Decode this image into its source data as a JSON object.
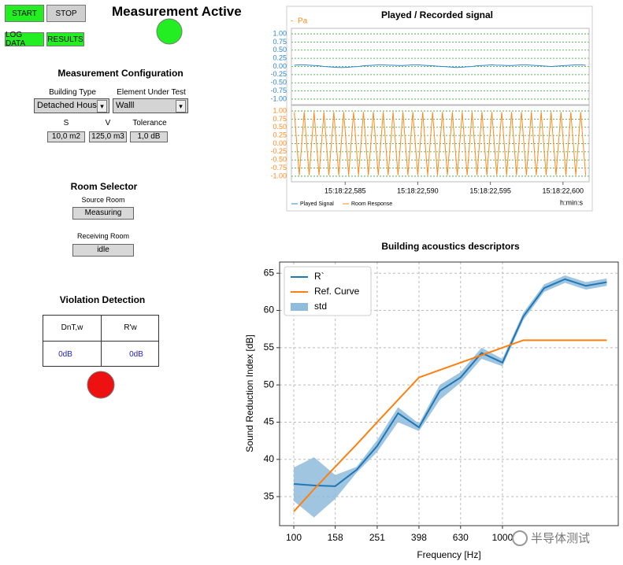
{
  "ui": {
    "buttons": {
      "start": "START",
      "stop": "STOP",
      "log_data": "LOG DATA",
      "results": "RESULTS"
    },
    "status": "Measurement Active",
    "config": {
      "title": "Measurement Configuration",
      "building_type_label": "Building Type",
      "building_type": "Detached House",
      "element_label": "Element Under Test",
      "element": "Walll",
      "s_label": "S",
      "s": "10,0 m2",
      "v_label": "V",
      "v": "125,0 m3",
      "tolerance_label": "Tolerance",
      "tolerance": "1,0 dB"
    },
    "room_selector": {
      "title": "Room Selector",
      "source_label": "Source Room",
      "source": "Measuring",
      "receiving_label": "Receiving Room",
      "receiving": "idle"
    },
    "violation": {
      "title": "Violation Detection",
      "headers": [
        "DnT,w",
        "R'w"
      ],
      "values": [
        "0dB",
        "0dB"
      ]
    },
    "watermark": "半导体测试"
  },
  "chart_data": [
    {
      "type": "line",
      "subplots": true,
      "title": "Played / Recorded signal",
      "y_unit": "Pa",
      "x_unit": "h:min:s",
      "x": [
        22.5815,
        22.58184,
        22.58218,
        22.58252,
        22.58286,
        22.5832,
        22.58354,
        22.58388,
        22.58422,
        22.58456,
        22.5849,
        22.58524,
        22.58558,
        22.58592,
        22.58626,
        22.5866,
        22.58694,
        22.58728,
        22.58762,
        22.58796,
        22.5883,
        22.58864,
        22.58898,
        22.58932,
        22.58966,
        22.59,
        22.59034,
        22.59068,
        22.59102,
        22.59136,
        22.5917,
        22.59204,
        22.59238,
        22.59272,
        22.59306,
        22.5934,
        22.59374,
        22.59408,
        22.59442,
        22.59476,
        22.5951,
        22.59544,
        22.59578,
        22.59612,
        22.59646,
        22.5968,
        22.59714,
        22.59748,
        22.59782,
        22.59816,
        22.5985,
        22.59884,
        22.59918,
        22.59952,
        22.59986,
        22.6002,
        22.60054,
        22.60088,
        22.60122,
        22.60156
      ],
      "xlim": [
        22.5813,
        22.6018
      ],
      "xticks": [
        {
          "value": 22.585,
          "label": "15:18:22,585"
        },
        {
          "value": 22.59,
          "label": "15:18:22,590"
        },
        {
          "value": 22.595,
          "label": "15:18:22,595"
        },
        {
          "value": 22.6,
          "label": "15:18:22,600"
        }
      ],
      "ylim": [
        -1.17,
        1.17
      ],
      "yticks": [
        {
          "value": 1,
          "label": "1.00"
        },
        {
          "value": 0.75,
          "label": "0.75"
        },
        {
          "value": 0.5,
          "label": "0.50"
        },
        {
          "value": 0.25,
          "label": "0.25"
        },
        {
          "value": 0,
          "label": "0.00"
        },
        {
          "value": -0.25,
          "label": "-0.25"
        },
        {
          "value": -0.5,
          "label": "-0.50"
        },
        {
          "value": -0.75,
          "label": "-0.75"
        },
        {
          "value": -1,
          "label": "-1.00"
        }
      ],
      "grid": true,
      "series": [
        {
          "name": "Played Signal",
          "color": "#2e86c8",
          "values": [
            0.04,
            0.05,
            0.05,
            0.04,
            0.03,
            0.02,
            0.0,
            -0.01,
            -0.02,
            -0.03,
            -0.03,
            -0.02,
            -0.01,
            0.0,
            0.02,
            0.03,
            0.04,
            0.05,
            0.05,
            0.04,
            0.04,
            0.03,
            0.03,
            0.04,
            0.05,
            0.05,
            0.04,
            0.03,
            0.02,
            0.01,
            0.0,
            -0.01,
            -0.02,
            -0.03,
            -0.02,
            -0.01,
            0.0,
            0.02,
            0.03,
            0.04,
            0.05,
            0.04,
            0.04,
            0.03,
            0.03,
            0.04,
            0.05,
            0.05,
            0.04,
            0.03,
            0.02,
            0.01,
            0.0,
            0.01,
            0.02,
            0.03,
            0.04,
            0.05,
            0.05,
            0.04
          ]
        },
        {
          "name": "Room Response",
          "color": "#ff8a1c",
          "values": [
            0.97,
            -0.97,
            0.97,
            -0.97,
            0.97,
            -0.97,
            0.97,
            -0.97,
            0.97,
            -0.97,
            0.97,
            -0.97,
            0.97,
            -0.97,
            0.97,
            -0.97,
            0.97,
            -0.97,
            0.97,
            -0.97,
            0.97,
            -0.97,
            0.97,
            -0.97,
            0.97,
            -0.97,
            0.97,
            -0.97,
            0.97,
            -0.97,
            0.97,
            -0.97,
            0.97,
            -0.97,
            0.97,
            -0.97,
            0.97,
            -0.97,
            0.97,
            -0.97,
            0.97,
            -0.97,
            0.97,
            -0.97,
            0.97,
            -0.97,
            0.97,
            -0.97,
            0.97,
            -0.97,
            0.97,
            -0.97,
            0.97,
            -0.97,
            0.97,
            -0.97,
            0.97,
            -0.97,
            0.97,
            -0.97
          ]
        }
      ]
    },
    {
      "type": "line",
      "title": "Building acoustics descriptors",
      "xlabel": "Frequency [Hz]",
      "ylabel": "Sound Reduction Index [dB]",
      "xscale": "log",
      "x": [
        100,
        125,
        158,
        200,
        251,
        316,
        398,
        501,
        630,
        794,
        1000,
        1259,
        1585,
        1995,
        2512,
        3162
      ],
      "xlim": [
        85.5,
        3590
      ],
      "xticks": [
        100,
        158,
        251,
        398,
        630,
        1000
      ],
      "ylim": [
        31.1,
        66.5
      ],
      "yticks": [
        35,
        40,
        45,
        50,
        55,
        60,
        65
      ],
      "grid": true,
      "legend": "upper left",
      "series": [
        {
          "name": "R`",
          "color": "#1f77b4",
          "values": [
            36.7,
            36.5,
            36.4,
            38.6,
            41.8,
            46.2,
            44.3,
            49.2,
            51.0,
            54.3,
            53.0,
            59.2,
            63.0,
            64.2,
            63.3,
            63.8
          ]
        },
        {
          "name": "Ref. Curve",
          "color": "#ff7f0e",
          "values": [
            33,
            36,
            39,
            42,
            45,
            48,
            51,
            52,
            53,
            54,
            55,
            56,
            56,
            56,
            56,
            56
          ]
        },
        {
          "name": "std",
          "color": "#8fbbdc",
          "lower": [
            34.4,
            32.2,
            34.7,
            38.2,
            41.0,
            45.0,
            43.8,
            48.0,
            50.3,
            53.5,
            52.5,
            58.7,
            62.5,
            63.7,
            62.8,
            63.3
          ],
          "upper": [
            38.9,
            40.3,
            37.9,
            39.0,
            42.6,
            47.0,
            44.8,
            50.0,
            51.7,
            55.0,
            53.5,
            59.7,
            63.5,
            64.7,
            63.8,
            64.3
          ]
        }
      ]
    }
  ]
}
